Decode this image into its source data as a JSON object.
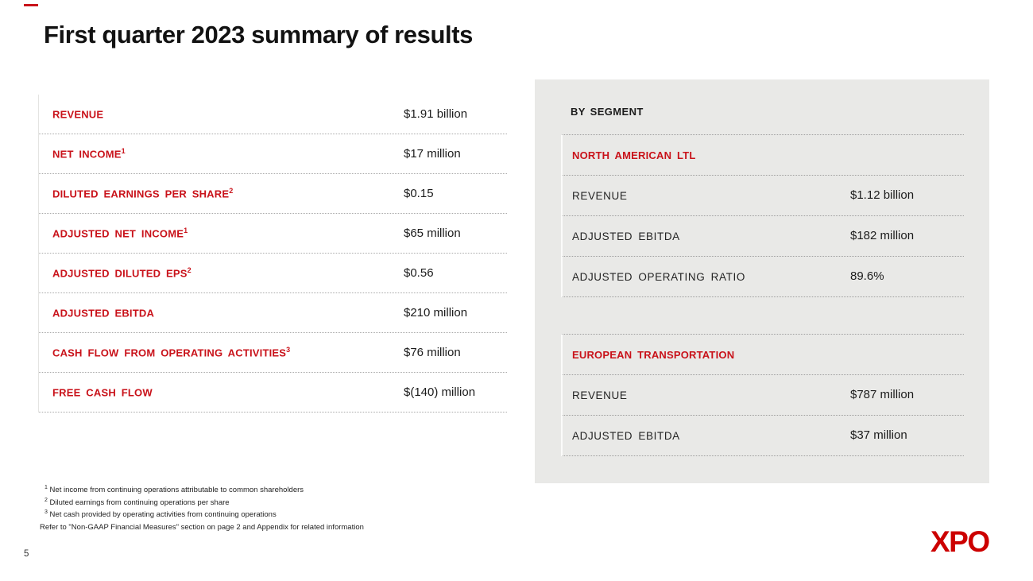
{
  "slide": {
    "title": "First quarter 2023 summary of results",
    "page_number": "5",
    "logo_text": "XPO"
  },
  "colors": {
    "accent_red": "#C9121A",
    "logo_red": "#CC0000",
    "panel_bg": "#E9E9E7",
    "text_dark": "#1B1B1B"
  },
  "summary_table": {
    "rows": [
      {
        "label": "REVENUE",
        "sup": "",
        "value": "$1.91 billion"
      },
      {
        "label": "NET INCOME",
        "sup": "1",
        "value": "$17 million"
      },
      {
        "label": "DILUTED EARNINGS PER SHARE",
        "sup": "2",
        "value": "$0.15"
      },
      {
        "label": "ADJUSTED NET INCOME",
        "sup": "1",
        "value": "$65 million"
      },
      {
        "label": "ADJUSTED DILUTED EPS",
        "sup": "2",
        "value": "$0.56"
      },
      {
        "label": "ADJUSTED EBITDA",
        "sup": "",
        "value": "$210 million"
      },
      {
        "label": "CASH FLOW FROM OPERATING ACTIVITIES",
        "sup": "3",
        "value": "$76 million"
      },
      {
        "label": "FREE CASH FLOW",
        "sup": "",
        "value": "$(140) million"
      }
    ]
  },
  "segment_panel": {
    "header": "BY SEGMENT",
    "segments": [
      {
        "name": "NORTH AMERICAN LTL",
        "rows": [
          {
            "label": "REVENUE",
            "value": "$1.12 billion"
          },
          {
            "label": "ADJUSTED EBITDA",
            "value": "$182 million"
          },
          {
            "label": "ADJUSTED OPERATING RATIO",
            "value": "89.6%"
          }
        ]
      },
      {
        "name": "EUROPEAN TRANSPORTATION",
        "rows": [
          {
            "label": "REVENUE",
            "value": "$787 million"
          },
          {
            "label": "ADJUSTED EBITDA",
            "value": "$37 million"
          }
        ]
      }
    ]
  },
  "footnotes": [
    {
      "sup": "1",
      "text": "Net income from continuing operations attributable to common shareholders"
    },
    {
      "sup": "2",
      "text": "Diluted earnings from continuing operations per share"
    },
    {
      "sup": "3",
      "text": "Net cash provided by operating activities from continuing operations"
    },
    {
      "sup": "",
      "text": "Refer to \"Non-GAAP Financial Measures\" section on page 2 and Appendix for related information"
    }
  ]
}
